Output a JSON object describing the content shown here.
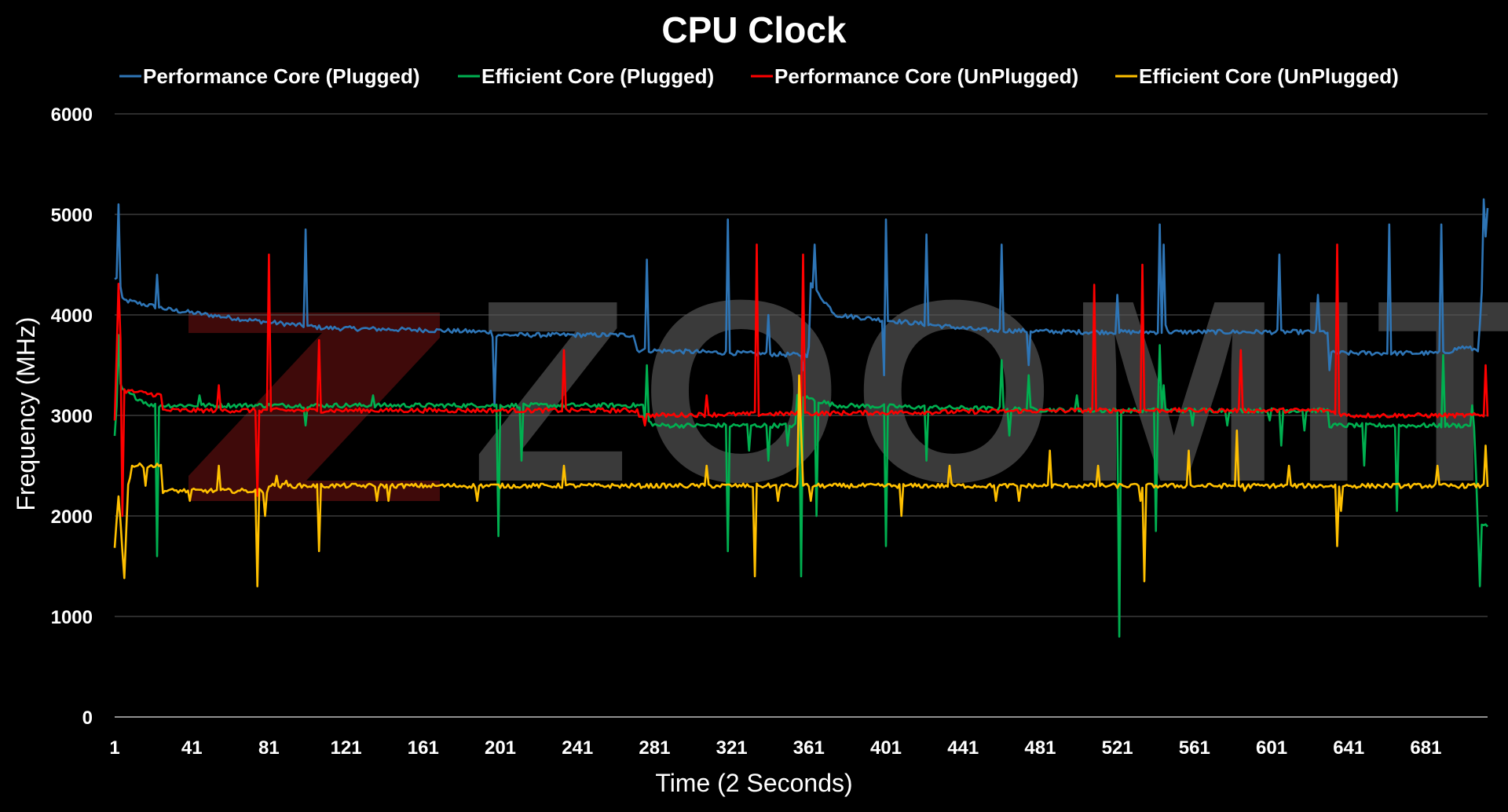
{
  "chart_data": {
    "type": "line",
    "title": "CPU Clock",
    "xlabel": "Time (2 Seconds)",
    "ylabel": "Frequency (MHz)",
    "ylim": [
      0,
      6000
    ],
    "xlim": [
      1,
      713
    ],
    "grid": true,
    "legend_position": "top",
    "y_ticks": [
      0,
      1000,
      2000,
      3000,
      4000,
      5000,
      6000
    ],
    "x_ticks": [
      1,
      41,
      81,
      121,
      161,
      201,
      241,
      281,
      321,
      361,
      401,
      441,
      481,
      521,
      561,
      601,
      641,
      681
    ],
    "watermark": "ZOOMIT",
    "series": [
      {
        "name": "Performance Core (Plugged)",
        "color": "#2E75B6",
        "base": [
          [
            1,
            4350
          ],
          [
            3,
            4400
          ],
          [
            5,
            4150
          ],
          [
            30,
            4050
          ],
          [
            70,
            3950
          ],
          [
            110,
            3870
          ],
          [
            160,
            3850
          ],
          [
            196,
            3830
          ],
          [
            197,
            3800
          ],
          [
            270,
            3800
          ],
          [
            272,
            3650
          ],
          [
            360,
            3600
          ],
          [
            361,
            3700
          ],
          [
            362,
            4300
          ],
          [
            375,
            4000
          ],
          [
            450,
            3850
          ],
          [
            500,
            3830
          ],
          [
            630,
            3830
          ],
          [
            631,
            3620
          ],
          [
            690,
            3620
          ],
          [
            700,
            3680
          ],
          [
            708,
            3650
          ],
          [
            713,
            5050
          ]
        ],
        "spikes": [
          [
            3,
            5100
          ],
          [
            23,
            4400
          ],
          [
            100,
            4850
          ],
          [
            198,
            3100
          ],
          [
            277,
            4550
          ],
          [
            319,
            4950
          ],
          [
            340,
            4000
          ],
          [
            358,
            3450
          ],
          [
            364,
            4700
          ],
          [
            400,
            3400
          ],
          [
            401,
            4950
          ],
          [
            422,
            4800
          ],
          [
            461,
            4700
          ],
          [
            475,
            3500
          ],
          [
            521,
            4200
          ],
          [
            543,
            4900
          ],
          [
            545,
            4700
          ],
          [
            546,
            3900
          ],
          [
            605,
            4600
          ],
          [
            625,
            4200
          ],
          [
            631,
            3450
          ],
          [
            662,
            4900
          ],
          [
            689,
            4900
          ],
          [
            711,
            5150
          ]
        ]
      },
      {
        "name": "Efficient Core (Plugged)",
        "color": "#00B050",
        "base": [
          [
            1,
            2800
          ],
          [
            3,
            3350
          ],
          [
            5,
            3250
          ],
          [
            15,
            3150
          ],
          [
            20,
            3100
          ],
          [
            275,
            3100
          ],
          [
            276,
            2950
          ],
          [
            282,
            2900
          ],
          [
            300,
            2900
          ],
          [
            330,
            2900
          ],
          [
            354,
            2900
          ],
          [
            355,
            3200
          ],
          [
            375,
            3100
          ],
          [
            500,
            3050
          ],
          [
            630,
            3050
          ],
          [
            631,
            2900
          ],
          [
            690,
            2900
          ],
          [
            706,
            2900
          ],
          [
            708,
            1900
          ],
          [
            713,
            1900
          ]
        ],
        "spikes": [
          [
            3,
            3800
          ],
          [
            23,
            1600
          ],
          [
            45,
            3200
          ],
          [
            100,
            2900
          ],
          [
            135,
            3200
          ],
          [
            200,
            1800
          ],
          [
            212,
            2550
          ],
          [
            277,
            3500
          ],
          [
            319,
            1650
          ],
          [
            330,
            2650
          ],
          [
            340,
            2550
          ],
          [
            350,
            2700
          ],
          [
            357,
            1400
          ],
          [
            365,
            2000
          ],
          [
            401,
            1700
          ],
          [
            422,
            2550
          ],
          [
            461,
            3550
          ],
          [
            465,
            2800
          ],
          [
            475,
            3400
          ],
          [
            500,
            3200
          ],
          [
            522,
            800
          ],
          [
            541,
            1850
          ],
          [
            543,
            3700
          ],
          [
            545,
            3300
          ],
          [
            560,
            2900
          ],
          [
            578,
            2900
          ],
          [
            600,
            2950
          ],
          [
            606,
            2700
          ],
          [
            618,
            2850
          ],
          [
            649,
            2500
          ],
          [
            666,
            2050
          ],
          [
            690,
            3600
          ],
          [
            705,
            3100
          ],
          [
            709,
            1300
          ]
        ]
      },
      {
        "name": "Performance Core (UnPlugged)",
        "color": "#FF0000",
        "base": [
          [
            1,
            2950
          ],
          [
            3,
            4300
          ],
          [
            5,
            3250
          ],
          [
            25,
            3200
          ],
          [
            26,
            3050
          ],
          [
            272,
            3050
          ],
          [
            273,
            3000
          ],
          [
            500,
            3050
          ],
          [
            630,
            3050
          ],
          [
            640,
            3000
          ],
          [
            713,
            3000
          ]
        ],
        "spikes": [
          [
            5,
            2000
          ],
          [
            55,
            3300
          ],
          [
            75,
            2200
          ],
          [
            81,
            4600
          ],
          [
            107,
            3750
          ],
          [
            234,
            3650
          ],
          [
            276,
            2900
          ],
          [
            308,
            3200
          ],
          [
            334,
            4700
          ],
          [
            358,
            4600
          ],
          [
            509,
            4300
          ],
          [
            534,
            4500
          ],
          [
            585,
            3650
          ],
          [
            635,
            4700
          ],
          [
            712,
            3500
          ]
        ]
      },
      {
        "name": "Efficient Core (UnPlugged)",
        "color": "#FFC000",
        "base": [
          [
            1,
            1700
          ],
          [
            3,
            2200
          ],
          [
            6,
            1400
          ],
          [
            8,
            2300
          ],
          [
            10,
            2500
          ],
          [
            25,
            2500
          ],
          [
            26,
            2250
          ],
          [
            80,
            2250
          ],
          [
            81,
            2300
          ],
          [
            355,
            2300
          ],
          [
            356,
            3400
          ],
          [
            358,
            2300
          ],
          [
            713,
            2300
          ]
        ],
        "spikes": [
          [
            17,
            2300
          ],
          [
            40,
            2150
          ],
          [
            55,
            2500
          ],
          [
            75,
            1300
          ],
          [
            79,
            2000
          ],
          [
            85,
            2400
          ],
          [
            90,
            2350
          ],
          [
            107,
            1650
          ],
          [
            137,
            2150
          ],
          [
            143,
            2150
          ],
          [
            189,
            2150
          ],
          [
            234,
            2500
          ],
          [
            308,
            2500
          ],
          [
            333,
            1400
          ],
          [
            345,
            2150
          ],
          [
            362,
            2150
          ],
          [
            409,
            2000
          ],
          [
            434,
            2500
          ],
          [
            458,
            2150
          ],
          [
            470,
            2150
          ],
          [
            486,
            2650
          ],
          [
            511,
            2500
          ],
          [
            533,
            2150
          ],
          [
            535,
            1350
          ],
          [
            558,
            2650
          ],
          [
            583,
            2850
          ],
          [
            587,
            2250
          ],
          [
            610,
            2500
          ],
          [
            635,
            1700
          ],
          [
            637,
            2050
          ],
          [
            687,
            2500
          ],
          [
            712,
            2700
          ]
        ]
      }
    ]
  }
}
